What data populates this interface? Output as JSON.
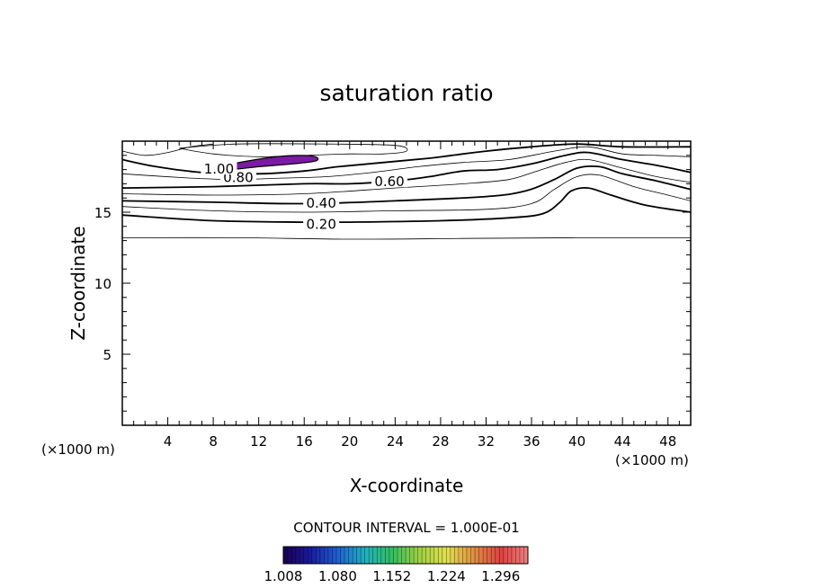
{
  "chart_data": {
    "type": "contour",
    "title": "saturation ratio",
    "xlabel": "X-coordinate",
    "ylabel": "Z-coordinate",
    "x_unit_left": "(×1000 m)",
    "x_unit_right": "(×1000 m)",
    "xlim": [
      0,
      50
    ],
    "ylim": [
      0,
      20
    ],
    "x_ticks": [
      4,
      8,
      12,
      16,
      20,
      24,
      28,
      32,
      36,
      40,
      44,
      48
    ],
    "x_tick_labels": [
      "4",
      "8",
      "12",
      "16",
      "20",
      "24",
      "28",
      "32",
      "36",
      "40",
      "44",
      "48"
    ],
    "y_ticks": [
      5,
      10,
      15
    ],
    "y_tick_labels": [
      "5",
      "10",
      "15"
    ],
    "contour_interval_text": "CONTOUR INTERVAL = 1.000E-01",
    "contour_labels": [
      {
        "text": "0.20",
        "x": 17.5,
        "y": 14.2
      },
      {
        "text": "0.40",
        "x": 17.5,
        "y": 15.7
      },
      {
        "text": "0.60",
        "x": 23.5,
        "y": 17.2
      },
      {
        "text": "0.80",
        "x": 10.2,
        "y": 17.5
      },
      {
        "text": "1.00",
        "x": 8.5,
        "y": 18.1
      }
    ],
    "contours": [
      {
        "level": 0.1,
        "bold": false,
        "points": [
          [
            0,
            13.2
          ],
          [
            10,
            13.2
          ],
          [
            20,
            13.1
          ],
          [
            30,
            13.15
          ],
          [
            40,
            13.2
          ],
          [
            50,
            13.2
          ]
        ]
      },
      {
        "level": 0.2,
        "bold": true,
        "points": [
          [
            0,
            14.8
          ],
          [
            8,
            14.4
          ],
          [
            16,
            14.3
          ],
          [
            20,
            14.3
          ],
          [
            28,
            14.4
          ],
          [
            34,
            14.6
          ],
          [
            37,
            14.9
          ],
          [
            38.5,
            15.7
          ],
          [
            39.5,
            16.5
          ],
          [
            41,
            16.7
          ],
          [
            43,
            16.2
          ],
          [
            46,
            15.5
          ],
          [
            50,
            15.0
          ]
        ]
      },
      {
        "level": 0.3,
        "bold": false,
        "points": [
          [
            0,
            15.4
          ],
          [
            8,
            15.1
          ],
          [
            16,
            15.0
          ],
          [
            24,
            15.1
          ],
          [
            32,
            15.2
          ],
          [
            36,
            15.6
          ],
          [
            38,
            16.6
          ],
          [
            40,
            17.5
          ],
          [
            42,
            17.6
          ],
          [
            45,
            16.8
          ],
          [
            48,
            16.2
          ],
          [
            50,
            15.8
          ]
        ]
      },
      {
        "level": 0.4,
        "bold": true,
        "points": [
          [
            0,
            15.8
          ],
          [
            8,
            15.7
          ],
          [
            16,
            15.6
          ],
          [
            24,
            15.8
          ],
          [
            32,
            16.1
          ],
          [
            35.5,
            16.5
          ],
          [
            38,
            17.3
          ],
          [
            40,
            18.1
          ],
          [
            42,
            18.2
          ],
          [
            44,
            17.7
          ],
          [
            47,
            17.2
          ],
          [
            50,
            16.6
          ]
        ]
      },
      {
        "level": 0.5,
        "bold": false,
        "points": [
          [
            0,
            16.3
          ],
          [
            8,
            16.2
          ],
          [
            16,
            16.3
          ],
          [
            24,
            16.7
          ],
          [
            30,
            17.0
          ],
          [
            34,
            17.3
          ],
          [
            36.5,
            17.9
          ],
          [
            39,
            18.5
          ],
          [
            41,
            18.7
          ],
          [
            44,
            18.1
          ],
          [
            47,
            17.5
          ],
          [
            50,
            17.1
          ]
        ]
      },
      {
        "level": 0.6,
        "bold": true,
        "points": [
          [
            0,
            16.7
          ],
          [
            8,
            16.8
          ],
          [
            16,
            17.0
          ],
          [
            20,
            17.0
          ],
          [
            24,
            17.2
          ],
          [
            27,
            17.5
          ],
          [
            30,
            17.9
          ],
          [
            33,
            18.0
          ],
          [
            36,
            18.4
          ],
          [
            39,
            19.0
          ],
          [
            41,
            19.2
          ],
          [
            44,
            18.7
          ],
          [
            47,
            18.3
          ],
          [
            50,
            17.8
          ]
        ]
      },
      {
        "level": 0.7,
        "bold": false,
        "points": [
          [
            0,
            17.7
          ],
          [
            6,
            17.4
          ],
          [
            10,
            17.3
          ],
          [
            14,
            17.4
          ],
          [
            18,
            17.5
          ],
          [
            22,
            17.8
          ],
          [
            26,
            18.2
          ],
          [
            30,
            18.5
          ],
          [
            34,
            18.7
          ],
          [
            38,
            19.3
          ],
          [
            41,
            19.6
          ],
          [
            44,
            19.1
          ],
          [
            47,
            19.0
          ],
          [
            50,
            18.9
          ]
        ]
      },
      {
        "level": 0.8,
        "bold": true,
        "points": [
          [
            0,
            18.7
          ],
          [
            3,
            18.2
          ],
          [
            7,
            17.8
          ],
          [
            12,
            17.7
          ],
          [
            16,
            17.9
          ],
          [
            19,
            18.2
          ],
          [
            23,
            18.5
          ],
          [
            27,
            18.8
          ],
          [
            29,
            19.0
          ],
          [
            32,
            19.3
          ],
          [
            36,
            19.6
          ],
          [
            40,
            19.8
          ],
          [
            44,
            19.6
          ],
          [
            50,
            19.6
          ]
        ]
      },
      {
        "level": 0.9,
        "bold": false,
        "points": [
          [
            5,
            19.5
          ],
          [
            8,
            19.1
          ],
          [
            12,
            18.9
          ],
          [
            16,
            19.0
          ],
          [
            20,
            19.1
          ],
          [
            23,
            19.1
          ],
          [
            25,
            19.3
          ],
          [
            24,
            19.7
          ],
          [
            18,
            19.8
          ],
          [
            10,
            19.8
          ],
          [
            5,
            19.5
          ]
        ]
      },
      {
        "level": 0.9,
        "bold": false,
        "points": [
          [
            0,
            19.3
          ],
          [
            2,
            19.0
          ],
          [
            4,
            19.2
          ],
          [
            6,
            19.6
          ],
          [
            8,
            19.8
          ]
        ]
      }
    ],
    "supersaturated_region": {
      "level": 1.0,
      "color": "#7b1aa5",
      "points": [
        [
          7.6,
          18.1
        ],
        [
          9.0,
          18.3
        ],
        [
          11,
          18.6
        ],
        [
          13.5,
          18.9
        ],
        [
          15.5,
          19.0
        ],
        [
          17.0,
          18.9
        ],
        [
          17.0,
          18.6
        ],
        [
          15,
          18.4
        ],
        [
          12,
          18.2
        ],
        [
          9.5,
          18.0
        ],
        [
          7.6,
          18.1
        ]
      ]
    },
    "colorbar": {
      "min": 1.008,
      "max": 1.332,
      "colors": [
        "#1a0050",
        "#1a1aa0",
        "#2060d0",
        "#20b0c0",
        "#30c060",
        "#a0d040",
        "#e0e050",
        "#e09040",
        "#e04040",
        "#f08080"
      ],
      "tick_values": [
        1.008,
        1.08,
        1.152,
        1.224,
        1.296
      ],
      "tick_labels": [
        "1.008",
        "1.080",
        "1.152",
        "1.224",
        "1.296"
      ]
    }
  }
}
